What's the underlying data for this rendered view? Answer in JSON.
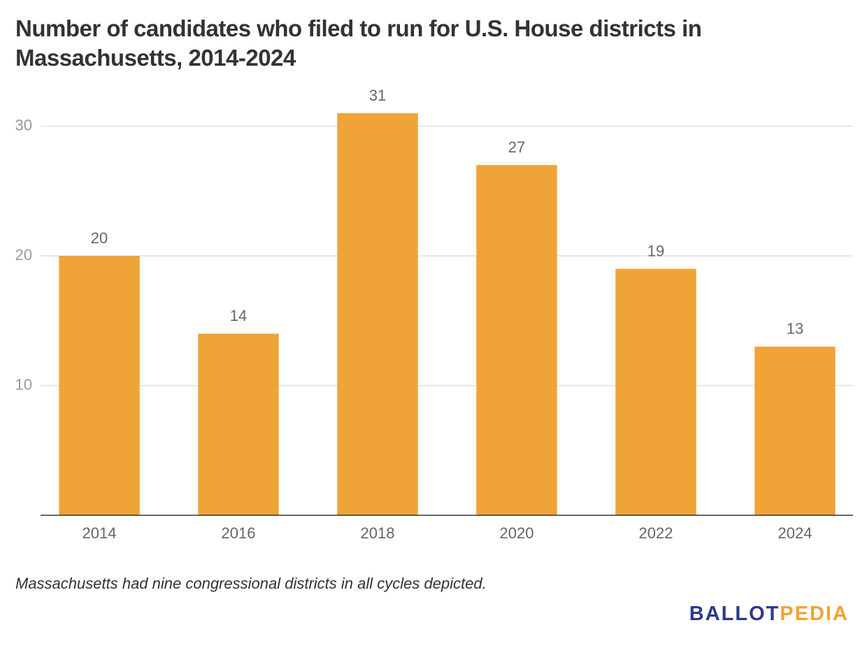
{
  "chart_data": {
    "type": "bar",
    "title": "Number of candidates who filed to run for U.S. House districts in Massachusetts, 2014-2024",
    "categories": [
      "2014",
      "2016",
      "2018",
      "2020",
      "2022",
      "2024"
    ],
    "values": [
      20,
      14,
      31,
      27,
      19,
      13
    ],
    "color": "#f0a336",
    "ylim": [
      0,
      32
    ],
    "yticks": [
      10,
      20,
      30
    ],
    "grid": true,
    "note": "Massachusetts had nine congressional districts in all cycles depicted."
  },
  "logo": {
    "first": "BALLOT",
    "second": "PEDIA"
  }
}
